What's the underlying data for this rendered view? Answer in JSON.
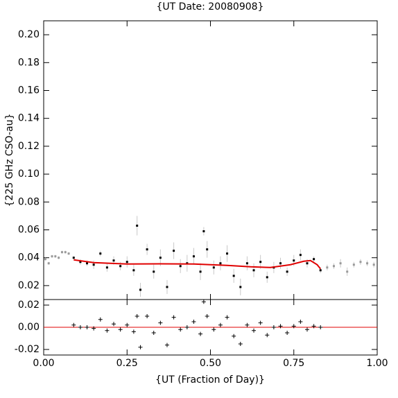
{
  "chart_data": [
    {
      "type": "scatter",
      "title": "{UT Date: 20080908}",
      "ylabel": "{225 GHz CSO-au}",
      "xlim": [
        0,
        1
      ],
      "ylim": [
        0.01,
        0.21
      ],
      "yticks": [
        0.02,
        0.04,
        0.06,
        0.08,
        {
          "value": 0.1,
          "label": "0.10"
        },
        0.12,
        0.14,
        0.16,
        0.18,
        {
          "value": 0.2,
          "label": "0.20"
        }
      ],
      "series": [
        {
          "color": "#9a9a9a",
          "marker": "dot",
          "x": [
            0.005,
            0.015,
            0.025,
            0.035,
            0.045,
            0.055,
            0.065,
            0.075
          ],
          "values": [
            0.039,
            0.036,
            0.041,
            0.041,
            0.04,
            0.044,
            0.044,
            0.043
          ],
          "errors": [
            0.001,
            0.001,
            0.001,
            0.001,
            0.001,
            0.001,
            0.001,
            0.001
          ]
        },
        {
          "color": "#000000",
          "marker": "dot",
          "x": [
            0.09,
            0.11,
            0.13,
            0.15,
            0.17,
            0.19,
            0.21,
            0.23,
            0.25,
            0.27,
            0.28,
            0.29,
            0.31,
            0.33,
            0.35,
            0.37,
            0.39,
            0.41,
            0.43,
            0.45,
            0.47,
            0.48,
            0.49,
            0.51,
            0.53,
            0.55,
            0.57,
            0.59,
            0.61,
            0.63,
            0.65,
            0.67,
            0.69,
            0.71,
            0.73,
            0.75,
            0.77,
            0.79,
            0.81,
            0.83
          ],
          "values": [
            0.04,
            0.037,
            0.036,
            0.035,
            0.043,
            0.033,
            0.038,
            0.034,
            0.037,
            0.031,
            0.063,
            0.017,
            0.046,
            0.03,
            0.04,
            0.019,
            0.045,
            0.034,
            0.036,
            0.041,
            0.03,
            0.059,
            0.046,
            0.033,
            0.036,
            0.043,
            0.027,
            0.019,
            0.036,
            0.031,
            0.037,
            0.026,
            0.033,
            0.036,
            0.03,
            0.038,
            0.042,
            0.036,
            0.039,
            0.031
          ],
          "errors": [
            0.001,
            0.002,
            0.002,
            0.003,
            0.002,
            0.003,
            0.003,
            0.003,
            0.004,
            0.004,
            0.007,
            0.005,
            0.004,
            0.005,
            0.006,
            0.005,
            0.006,
            0.005,
            0.006,
            0.006,
            0.006,
            0.003,
            0.006,
            0.005,
            0.005,
            0.006,
            0.005,
            0.006,
            0.005,
            0.005,
            0.005,
            0.004,
            0.004,
            0.004,
            0.003,
            0.004,
            0.004,
            0.003,
            0.002,
            0.002
          ]
        },
        {
          "color": "#9a9a9a",
          "marker": "dot",
          "x": [
            0.85,
            0.87,
            0.89,
            0.91,
            0.93,
            0.95,
            0.97,
            0.99
          ],
          "values": [
            0.033,
            0.034,
            0.036,
            0.03,
            0.035,
            0.037,
            0.036,
            0.035
          ],
          "errors": [
            0.002,
            0.002,
            0.003,
            0.003,
            0.002,
            0.002,
            0.002,
            0.002
          ]
        },
        {
          "color": "#e00000",
          "marker": "line",
          "x": [
            0.09,
            0.15,
            0.25,
            0.35,
            0.45,
            0.55,
            0.62,
            0.68,
            0.74,
            0.78,
            0.8,
            0.82,
            0.83
          ],
          "values": [
            0.0385,
            0.0365,
            0.0355,
            0.0356,
            0.0355,
            0.0345,
            0.0335,
            0.033,
            0.035,
            0.0375,
            0.038,
            0.035,
            0.032
          ]
        }
      ]
    },
    {
      "type": "scatter",
      "xlabel": "{UT (Fraction of Day)}",
      "xlim": [
        0,
        1
      ],
      "xticks": [
        {
          "value": 0,
          "label": "0.00"
        },
        0.25,
        {
          "value": 0.5,
          "label": "0.50"
        },
        0.75,
        {
          "value": 1,
          "label": "1.00"
        }
      ],
      "ylim": [
        -0.025,
        0.025
      ],
      "yticks": [
        -0.02,
        {
          "value": 0,
          "label": "0.00"
        },
        0.02
      ],
      "hline": 0,
      "hline_color": "#e00000",
      "series": [
        {
          "color": "#000000",
          "marker": "plus",
          "x": [
            0.09,
            0.11,
            0.13,
            0.15,
            0.17,
            0.19,
            0.21,
            0.23,
            0.25,
            0.27,
            0.28,
            0.29,
            0.31,
            0.33,
            0.35,
            0.37,
            0.39,
            0.41,
            0.43,
            0.45,
            0.47,
            0.48,
            0.49,
            0.51,
            0.53,
            0.55,
            0.57,
            0.59,
            0.61,
            0.63,
            0.65,
            0.67,
            0.69,
            0.71,
            0.73,
            0.75,
            0.77,
            0.79,
            0.81,
            0.83
          ],
          "values": [
            0.002,
            0.0,
            0.0,
            -0.001,
            0.007,
            -0.003,
            0.003,
            -0.002,
            0.002,
            -0.004,
            0.01,
            -0.018,
            0.01,
            -0.005,
            0.004,
            -0.016,
            0.009,
            -0.002,
            0.0,
            0.005,
            -0.006,
            0.023,
            0.01,
            -0.002,
            0.002,
            0.009,
            -0.008,
            -0.015,
            0.002,
            -0.003,
            0.004,
            -0.007,
            0.0,
            0.001,
            -0.005,
            0.001,
            0.005,
            -0.002,
            0.001,
            0.0
          ]
        }
      ]
    }
  ]
}
